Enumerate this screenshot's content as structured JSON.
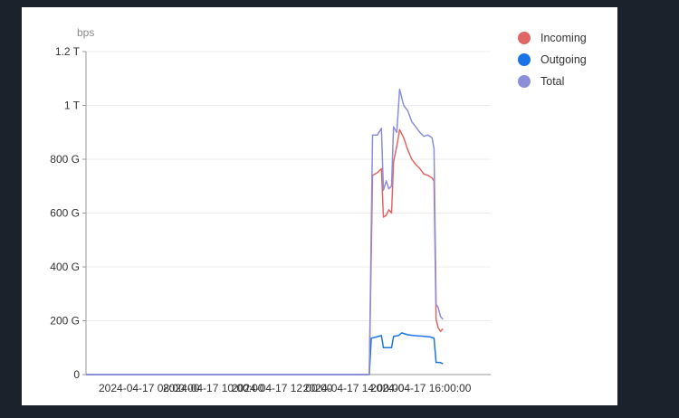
{
  "chart_data": {
    "type": "line",
    "y_unit": "bps",
    "yticks": [
      "1.2 T",
      "1 T",
      "800 G",
      "600 G",
      "400 G",
      "200 G",
      "0"
    ],
    "ylim": [
      0,
      1200
    ],
    "xticks": [
      "2024-04-17 08:00:00",
      "2024-04-17 10:00:00",
      "2024-04-17 12:00:00",
      "2024-04-17 14:00:00",
      "2024-04-17 16:00:00"
    ],
    "grid": true,
    "legend_position": "top-right",
    "series": [
      {
        "name": "Incoming",
        "color": "#e06666",
        "points": [
          [
            0,
            0
          ],
          [
            0.7,
            0
          ],
          [
            0.708,
            740
          ],
          [
            0.72,
            750
          ],
          [
            0.73,
            765
          ],
          [
            0.735,
            585
          ],
          [
            0.742,
            592
          ],
          [
            0.748,
            612
          ],
          [
            0.755,
            600
          ],
          [
            0.76,
            790
          ],
          [
            0.77,
            865
          ],
          [
            0.775,
            910
          ],
          [
            0.785,
            880
          ],
          [
            0.795,
            835
          ],
          [
            0.805,
            800
          ],
          [
            0.815,
            780
          ],
          [
            0.825,
            765
          ],
          [
            0.835,
            745
          ],
          [
            0.845,
            740
          ],
          [
            0.855,
            730
          ],
          [
            0.86,
            720
          ],
          [
            0.865,
            205
          ],
          [
            0.87,
            175
          ],
          [
            0.876,
            160
          ],
          [
            0.882,
            170
          ]
        ]
      },
      {
        "name": "Outgoing",
        "color": "#1b73e8",
        "points": [
          [
            0,
            0
          ],
          [
            0.7,
            0
          ],
          [
            0.705,
            135
          ],
          [
            0.718,
            140
          ],
          [
            0.73,
            145
          ],
          [
            0.735,
            100
          ],
          [
            0.755,
            100
          ],
          [
            0.76,
            142
          ],
          [
            0.772,
            145
          ],
          [
            0.78,
            155
          ],
          [
            0.795,
            148
          ],
          [
            0.81,
            145
          ],
          [
            0.83,
            143
          ],
          [
            0.85,
            140
          ],
          [
            0.86,
            135
          ],
          [
            0.865,
            45
          ],
          [
            0.875,
            45
          ],
          [
            0.882,
            40
          ]
        ]
      },
      {
        "name": "Total",
        "color": "#8b8fd8",
        "points": [
          [
            0,
            0
          ],
          [
            0.7,
            0
          ],
          [
            0.708,
            890
          ],
          [
            0.72,
            890
          ],
          [
            0.73,
            915
          ],
          [
            0.735,
            685
          ],
          [
            0.742,
            720
          ],
          [
            0.748,
            690
          ],
          [
            0.755,
            700
          ],
          [
            0.76,
            920
          ],
          [
            0.768,
            900
          ],
          [
            0.775,
            1060
          ],
          [
            0.785,
            1000
          ],
          [
            0.795,
            980
          ],
          [
            0.805,
            940
          ],
          [
            0.815,
            920
          ],
          [
            0.825,
            900
          ],
          [
            0.835,
            885
          ],
          [
            0.845,
            890
          ],
          [
            0.855,
            880
          ],
          [
            0.86,
            840
          ],
          [
            0.865,
            260
          ],
          [
            0.87,
            250
          ],
          [
            0.876,
            215
          ],
          [
            0.882,
            205
          ]
        ]
      }
    ]
  }
}
